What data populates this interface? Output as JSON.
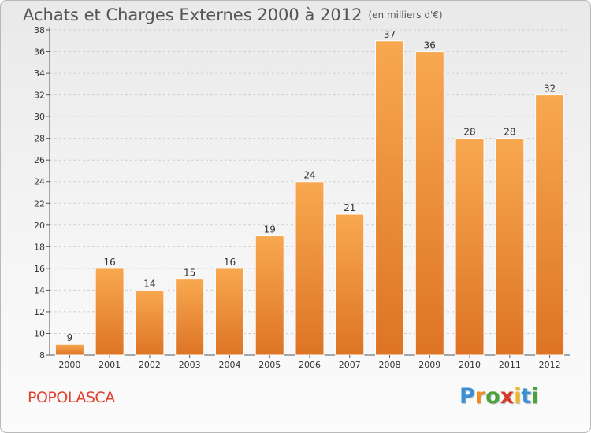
{
  "header": {
    "title": "Achats et Charges Externes 2000 à 2012",
    "unit": "(en milliers d'€)"
  },
  "footer": {
    "town": "POPOLASCA",
    "logo_letters": [
      "P",
      "r",
      "o",
      "x",
      "i",
      "t",
      "i"
    ],
    "logo_colors": [
      "#3b8fd4",
      "#f08c1e",
      "#4aa23a",
      "#d63a2a",
      "#f0b81e",
      "#3b8fd4",
      "#4aa23a"
    ]
  },
  "colors": {
    "bar_light": "#f8a850",
    "bar_dark": "#dd7425",
    "axis_text": "#333333",
    "grid": "#cfcfcf"
  },
  "chart_data": {
    "type": "bar",
    "title": "Achats et Charges Externes 2000 à 2012",
    "subtitle": "(en milliers d'€)",
    "xlabel": "",
    "ylabel": "",
    "categories": [
      "2000",
      "2001",
      "2002",
      "2003",
      "2004",
      "2005",
      "2006",
      "2007",
      "2008",
      "2009",
      "2010",
      "2011",
      "2012"
    ],
    "values": [
      9,
      16,
      14,
      15,
      16,
      19,
      24,
      21,
      37,
      36,
      28,
      28,
      32
    ],
    "ylim": [
      8,
      38
    ],
    "yticks": [
      8,
      10,
      12,
      14,
      16,
      18,
      20,
      22,
      24,
      26,
      28,
      30,
      32,
      34,
      36,
      38
    ],
    "grid": true,
    "legend": "none"
  }
}
